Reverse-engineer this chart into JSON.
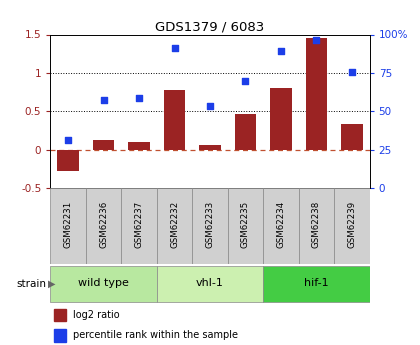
{
  "title": "GDS1379 / 6083",
  "samples": [
    "GSM62231",
    "GSM62236",
    "GSM62237",
    "GSM62232",
    "GSM62233",
    "GSM62235",
    "GSM62234",
    "GSM62238",
    "GSM62239"
  ],
  "log2_ratio": [
    -0.28,
    0.13,
    0.1,
    0.78,
    0.06,
    0.47,
    0.8,
    1.45,
    0.34
  ],
  "percentile": [
    0.13,
    0.65,
    0.67,
    1.33,
    0.57,
    0.9,
    1.29,
    1.43,
    1.01
  ],
  "bar_color": "#9b2323",
  "dot_color": "#1c3ee8",
  "ylim_left": [
    -0.5,
    1.5
  ],
  "ylim_right": [
    0,
    100
  ],
  "hlines": [
    0.5,
    1.0
  ],
  "zero_line_color": "#c05030",
  "groups": [
    {
      "label": "wild type",
      "indices": [
        0,
        1,
        2
      ],
      "color": "#b8e8a0"
    },
    {
      "label": "vhl-1",
      "indices": [
        3,
        4,
        5
      ],
      "color": "#ccf0b0"
    },
    {
      "label": "hif-1",
      "indices": [
        6,
        7,
        8
      ],
      "color": "#44cc44"
    }
  ],
  "legend_bar_label": "log2 ratio",
  "legend_dot_label": "percentile rank within the sample",
  "left_yticks": [
    -0.5,
    0.0,
    0.5,
    1.0,
    1.5
  ],
  "right_yticks": [
    0,
    25,
    50,
    75,
    100
  ]
}
